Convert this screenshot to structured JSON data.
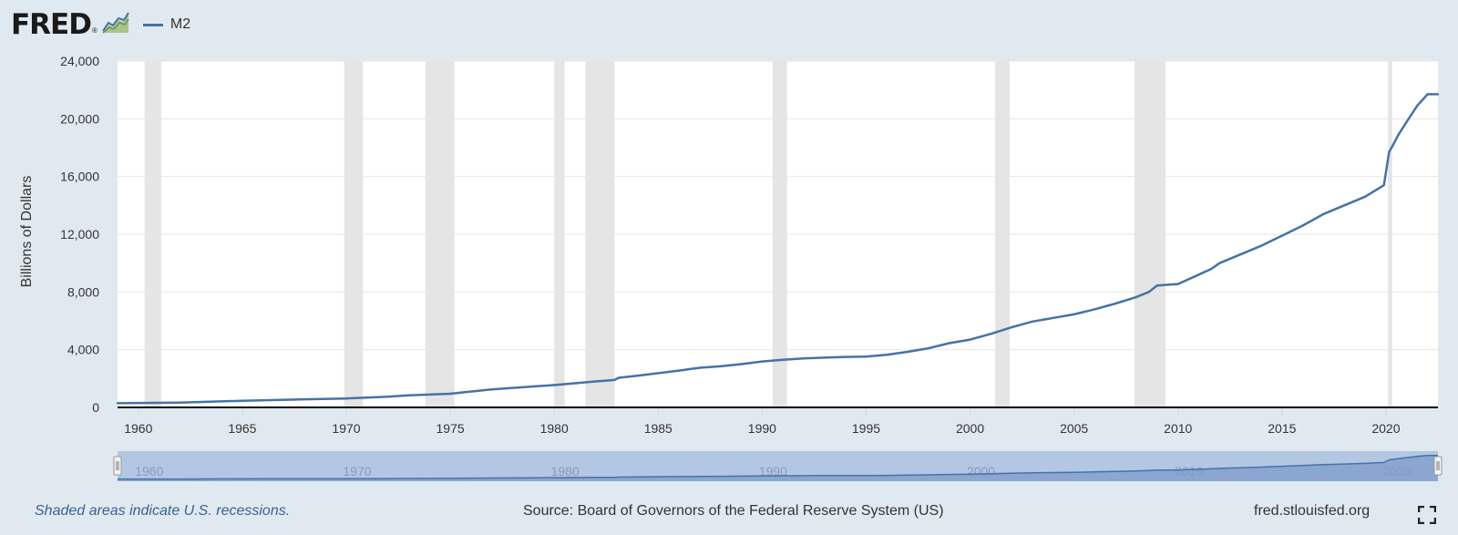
{
  "header": {
    "logo_text": "FRED",
    "logo_mark": "®",
    "logo_icon": "line-chart-icon"
  },
  "legend": {
    "label": "M2",
    "color": "#4572a7"
  },
  "footer": {
    "note": "Shaded areas indicate U.S. recessions.",
    "source": "Source: Board of Governors of the Federal Reserve System (US)",
    "site": "fred.stlouisfed.org",
    "expand_icon": "fullscreen-icon"
  },
  "colors": {
    "background": "#e1e9f0",
    "plot": "#ffffff",
    "series": "#4572a7",
    "recession": "#e5e5e5",
    "navigator_fill": "#b3c6e3"
  },
  "chart_data": {
    "type": "line",
    "ylabel": "Billions of Dollars",
    "ylim": [
      0,
      24000
    ],
    "xlim": [
      1959.0,
      2022.5
    ],
    "yticks": [
      0,
      4000,
      8000,
      12000,
      16000,
      20000,
      24000
    ],
    "ytick_labels": [
      "0",
      "4,000",
      "8,000",
      "12,000",
      "16,000",
      "20,000",
      "24,000"
    ],
    "xticks": [
      1960,
      1965,
      1970,
      1975,
      1980,
      1985,
      1990,
      1995,
      2000,
      2005,
      2010,
      2015,
      2020
    ],
    "navigator_ticks": [
      1960,
      1970,
      1980,
      1990,
      2000,
      2010,
      2020
    ],
    "grid": true,
    "recessions": [
      [
        1960.3,
        1961.1
      ],
      [
        1969.9,
        1970.8
      ],
      [
        1973.8,
        1975.2
      ],
      [
        1980.0,
        1980.5
      ],
      [
        1981.5,
        1982.9
      ],
      [
        1990.5,
        1991.2
      ],
      [
        2001.2,
        2001.9
      ],
      [
        2007.9,
        2009.4
      ],
      [
        2020.1,
        2020.3
      ]
    ],
    "series": [
      {
        "name": "M2",
        "x": [
          1959.0,
          1962,
          1965,
          1968,
          1970,
          1972,
          1973,
          1975,
          1977,
          1979,
          1980,
          1982,
          1982.9,
          1983.1,
          1984,
          1986,
          1987,
          1988,
          1989,
          1990,
          1991,
          1992,
          1993,
          1994,
          1995,
          1996,
          1997,
          1998,
          1999,
          2000,
          2001,
          2002,
          2003,
          2004,
          2005,
          2006,
          2007,
          2008,
          2008.6,
          2009,
          2010,
          2011,
          2011.6,
          2012,
          2013,
          2014,
          2015,
          2016,
          2017,
          2018,
          2019,
          2019.9,
          2020.15,
          2020.35,
          2020.6,
          2021,
          2021.5,
          2022,
          2022.5
        ],
        "y": [
          290,
          330,
          460,
          560,
          620,
          740,
          840,
          950,
          1250,
          1450,
          1550,
          1800,
          1900,
          2050,
          2200,
          2550,
          2750,
          2850,
          3000,
          3180,
          3300,
          3400,
          3450,
          3500,
          3520,
          3650,
          3850,
          4100,
          4450,
          4700,
          5100,
          5550,
          5950,
          6200,
          6450,
          6800,
          7200,
          7650,
          8000,
          8450,
          8550,
          9200,
          9600,
          10000,
          10600,
          11200,
          11900,
          12600,
          13400,
          14000,
          14600,
          15400,
          17700,
          18200,
          18900,
          19800,
          20900,
          21700,
          21700
        ]
      }
    ]
  }
}
